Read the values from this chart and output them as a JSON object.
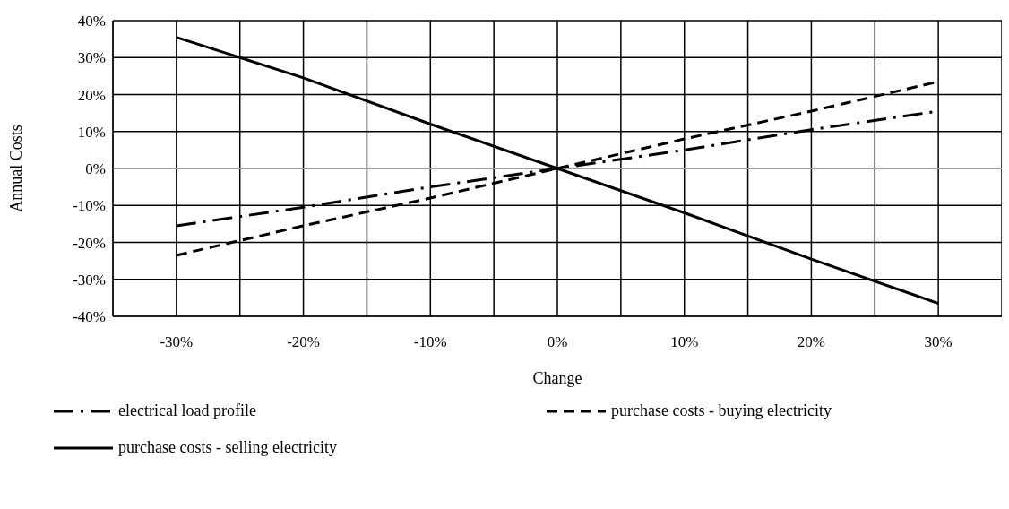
{
  "chart_data": {
    "type": "line",
    "xlabel": "Change",
    "ylabel": "Annual Costs",
    "x": [
      -30,
      -20,
      -10,
      0,
      10,
      20,
      30
    ],
    "series": [
      {
        "name": "electrical load profile",
        "color": "#000000",
        "line_style": "dashdot",
        "values": [
          -15.5,
          -10.5,
          -5,
          0,
          5,
          10.5,
          15.5
        ]
      },
      {
        "name": "purchase costs - buying electricity",
        "color": "#000000",
        "line_style": "dashed",
        "values": [
          -23.5,
          -15.5,
          -8,
          0,
          8,
          15.5,
          23.5
        ]
      },
      {
        "name": "purchase costs - selling electricity",
        "color": "#000000",
        "line_style": "solid",
        "values": [
          35.5,
          24.5,
          12,
          0,
          -12,
          -24.5,
          -36.5
        ]
      }
    ],
    "xlim": [
      -35,
      35
    ],
    "xticks": [
      {
        "value": -35,
        "label": null
      },
      {
        "value": -30,
        "label": "-30%"
      },
      {
        "value": -25,
        "label": null
      },
      {
        "value": -20,
        "label": "-20%"
      },
      {
        "value": -15,
        "label": null
      },
      {
        "value": -10,
        "label": "-10%"
      },
      {
        "value": -5,
        "label": null
      },
      {
        "value": 0,
        "label": "0%"
      },
      {
        "value": 5,
        "label": null
      },
      {
        "value": 10,
        "label": "10%"
      },
      {
        "value": 15,
        "label": null
      },
      {
        "value": 20,
        "label": "20%"
      },
      {
        "value": 25,
        "label": null
      },
      {
        "value": 30,
        "label": "30%"
      },
      {
        "value": 35,
        "label": null
      }
    ],
    "ylim": [
      -40,
      40
    ],
    "yticks": [
      {
        "value": -40,
        "label": "-40%"
      },
      {
        "value": -30,
        "label": "-30%"
      },
      {
        "value": -20,
        "label": "-20%"
      },
      {
        "value": -10,
        "label": "-10%"
      },
      {
        "value": 0,
        "label": "0%"
      },
      {
        "value": 10,
        "label": "10%"
      },
      {
        "value": 20,
        "label": "20%"
      },
      {
        "value": 30,
        "label": "30%"
      },
      {
        "value": 40,
        "label": "40%"
      }
    ],
    "ref_lines": [
      {
        "axis": "y",
        "value": 0,
        "color": "#a0a0a0"
      }
    ],
    "grid": true,
    "legend": "bottom",
    "marker": "none"
  }
}
